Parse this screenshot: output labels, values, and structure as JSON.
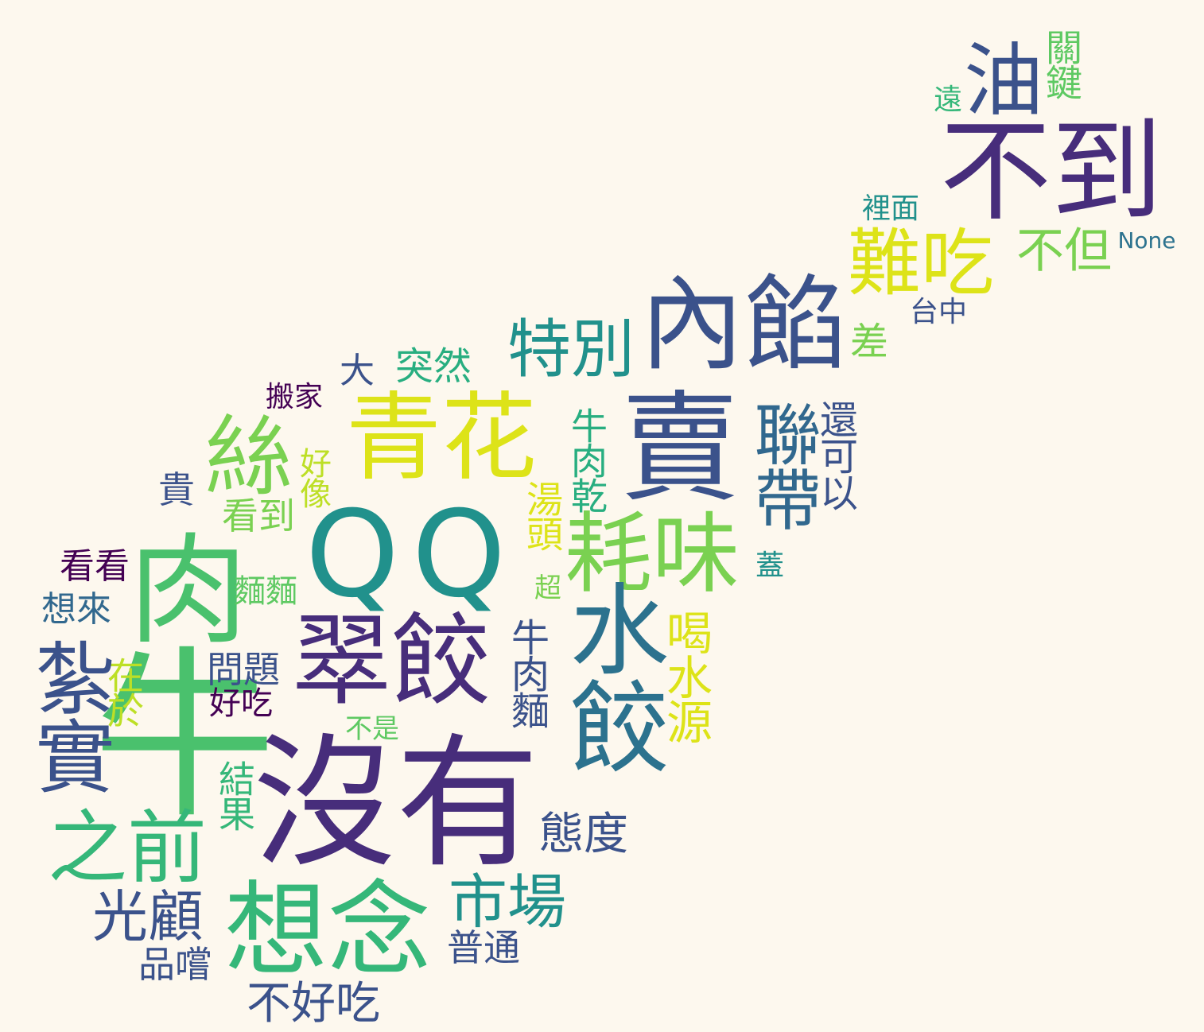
{
  "words": [
    {
      "text": "不到",
      "color": "#472d7b"
    },
    {
      "text": "油",
      "color": "#3b528b"
    },
    {
      "text": "關鍵",
      "color": "#5ec962"
    },
    {
      "text": "遠",
      "color": "#35b779"
    },
    {
      "text": "裡面",
      "color": "#21918c"
    },
    {
      "text": "None",
      "color": "#2c728e"
    },
    {
      "text": "難吃",
      "color": "#dde318"
    },
    {
      "text": "不但",
      "color": "#7ad151"
    },
    {
      "text": "台中",
      "color": "#3b528b"
    },
    {
      "text": "內餡",
      "color": "#3b528b"
    },
    {
      "text": "差",
      "color": "#7ad151"
    },
    {
      "text": "特別",
      "color": "#21918c"
    },
    {
      "text": "突然",
      "color": "#28ae80"
    },
    {
      "text": "大",
      "color": "#3b528b"
    },
    {
      "text": "搬家",
      "color": "#440154"
    },
    {
      "text": "青花",
      "color": "#dde318"
    },
    {
      "text": "賣",
      "color": "#3b528b"
    },
    {
      "text": "聯帶",
      "color": "#31688e"
    },
    {
      "text": "還可以",
      "color": "#3b528b"
    },
    {
      "text": "絲",
      "color": "#7ad151"
    },
    {
      "text": "好像",
      "color": "#bddf26"
    },
    {
      "text": "貴",
      "color": "#3b528b"
    },
    {
      "text": "牛肉乾",
      "color": "#28ae80"
    },
    {
      "text": "湯頭",
      "color": "#dde318"
    },
    {
      "text": "看到",
      "color": "#7ad151"
    },
    {
      "text": "耗味",
      "color": "#7ad151"
    },
    {
      "text": "蓋",
      "color": "#21918c"
    },
    {
      "text": "QQ",
      "color": "#21918c"
    },
    {
      "text": "牛",
      "color": "#4ac16d"
    },
    {
      "text": "肉",
      "color": "#4ac16d"
    },
    {
      "text": "看看",
      "color": "#440154"
    },
    {
      "text": "麵麵",
      "color": "#5ec962"
    },
    {
      "text": "超",
      "color": "#7ad151"
    },
    {
      "text": "想來",
      "color": "#31688e"
    },
    {
      "text": "翠餃",
      "color": "#472d7b"
    },
    {
      "text": "牛肉麵",
      "color": "#3b528b"
    },
    {
      "text": "水餃",
      "color": "#2c728e"
    },
    {
      "text": "喝水源",
      "color": "#dde318"
    },
    {
      "text": "問題",
      "color": "#3b528b"
    },
    {
      "text": "在於",
      "color": "#bddf26"
    },
    {
      "text": "好吃",
      "color": "#440154"
    },
    {
      "text": "不是",
      "color": "#5ec962"
    },
    {
      "text": "紮實",
      "color": "#3b528b"
    },
    {
      "text": "結果",
      "color": "#35b779"
    },
    {
      "text": "沒有",
      "color": "#472d7b"
    },
    {
      "text": "態度",
      "color": "#3b528b"
    },
    {
      "text": "之前",
      "color": "#35b779"
    },
    {
      "text": "市場",
      "color": "#21918c"
    },
    {
      "text": "光顧",
      "color": "#3b528b"
    },
    {
      "text": "想念",
      "color": "#35b779"
    },
    {
      "text": "普通",
      "color": "#3b528b"
    },
    {
      "text": "品嚐",
      "color": "#3b528b"
    },
    {
      "text": "不好吃",
      "color": "#3b528b"
    }
  ]
}
